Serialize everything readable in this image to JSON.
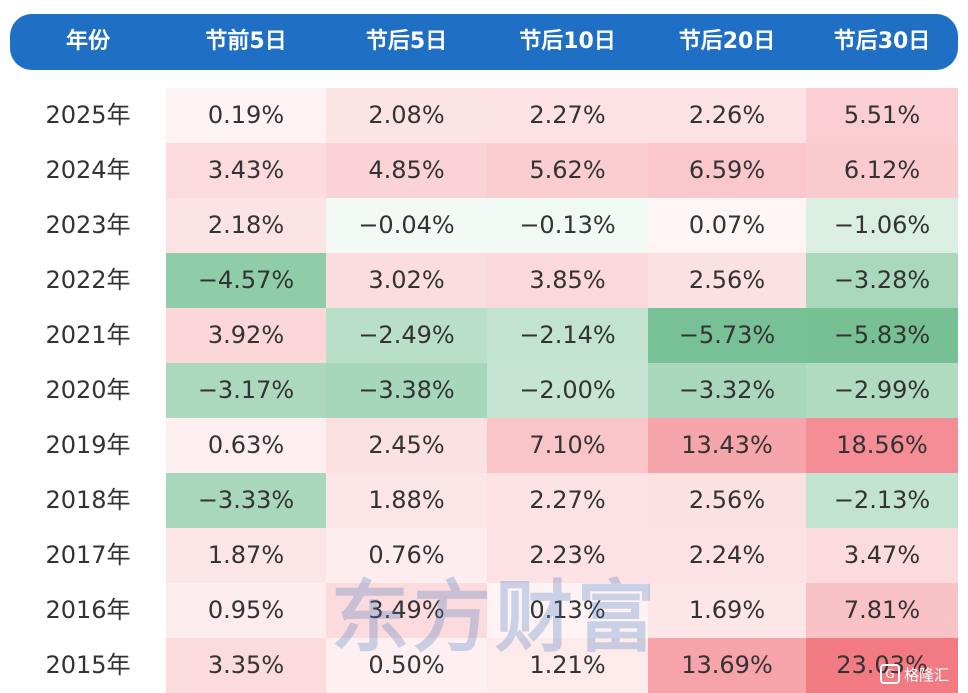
{
  "chart_data": {
    "type": "table",
    "columns": [
      "年份",
      "节前5日",
      "节后5日",
      "节后10日",
      "节后20日",
      "节后30日"
    ],
    "rows": [
      {
        "year": "2025年",
        "values": [
          "0.19%",
          "2.08%",
          "2.27%",
          "2.26%",
          "5.51%"
        ],
        "numbers": [
          0.19,
          2.08,
          2.27,
          2.26,
          5.51
        ]
      },
      {
        "year": "2024年",
        "values": [
          "3.43%",
          "4.85%",
          "5.62%",
          "6.59%",
          "6.12%"
        ],
        "numbers": [
          3.43,
          4.85,
          5.62,
          6.59,
          6.12
        ]
      },
      {
        "year": "2023年",
        "values": [
          "2.18%",
          "−0.04%",
          "−0.13%",
          "0.07%",
          "−1.06%"
        ],
        "numbers": [
          2.18,
          -0.04,
          -0.13,
          0.07,
          -1.06
        ]
      },
      {
        "year": "2022年",
        "values": [
          "−4.57%",
          "3.02%",
          "3.85%",
          "2.56%",
          "−3.28%"
        ],
        "numbers": [
          -4.57,
          3.02,
          3.85,
          2.56,
          -3.28
        ]
      },
      {
        "year": "2021年",
        "values": [
          "3.92%",
          "−2.49%",
          "−2.14%",
          "−5.73%",
          "−5.83%"
        ],
        "numbers": [
          3.92,
          -2.49,
          -2.14,
          -5.73,
          -5.83
        ]
      },
      {
        "year": "2020年",
        "values": [
          "−3.17%",
          "−3.38%",
          "−2.00%",
          "−3.32%",
          "−2.99%"
        ],
        "numbers": [
          -3.17,
          -3.38,
          -2.0,
          -3.32,
          -2.99
        ]
      },
      {
        "year": "2019年",
        "values": [
          "0.63%",
          "2.45%",
          "7.10%",
          "13.43%",
          "18.56%"
        ],
        "numbers": [
          0.63,
          2.45,
          7.1,
          13.43,
          18.56
        ]
      },
      {
        "year": "2018年",
        "values": [
          "−3.33%",
          "1.88%",
          "2.27%",
          "2.56%",
          "−2.13%"
        ],
        "numbers": [
          -3.33,
          1.88,
          2.27,
          2.56,
          -2.13
        ]
      },
      {
        "year": "2017年",
        "values": [
          "1.87%",
          "0.76%",
          "2.23%",
          "2.24%",
          "3.47%"
        ],
        "numbers": [
          1.87,
          0.76,
          2.23,
          2.24,
          3.47
        ]
      },
      {
        "year": "2016年",
        "values": [
          "0.95%",
          "3.49%",
          "0.13%",
          "1.69%",
          "7.81%"
        ],
        "numbers": [
          0.95,
          3.49,
          0.13,
          1.69,
          7.81
        ]
      },
      {
        "year": "2015年",
        "values": [
          "3.35%",
          "0.50%",
          "1.21%",
          "13.69%",
          "23.03%"
        ],
        "numbers": [
          3.35,
          0.5,
          1.21,
          13.69,
          23.03
        ]
      }
    ],
    "colors": {
      "header": "#1f6fc4",
      "positive": "#f0646e",
      "negative": "#5cb480"
    }
  },
  "watermark": "东方财富",
  "badge": {
    "icon": "G",
    "text": "格隆汇",
    "icon_name": "gelonghui-logo-icon"
  }
}
